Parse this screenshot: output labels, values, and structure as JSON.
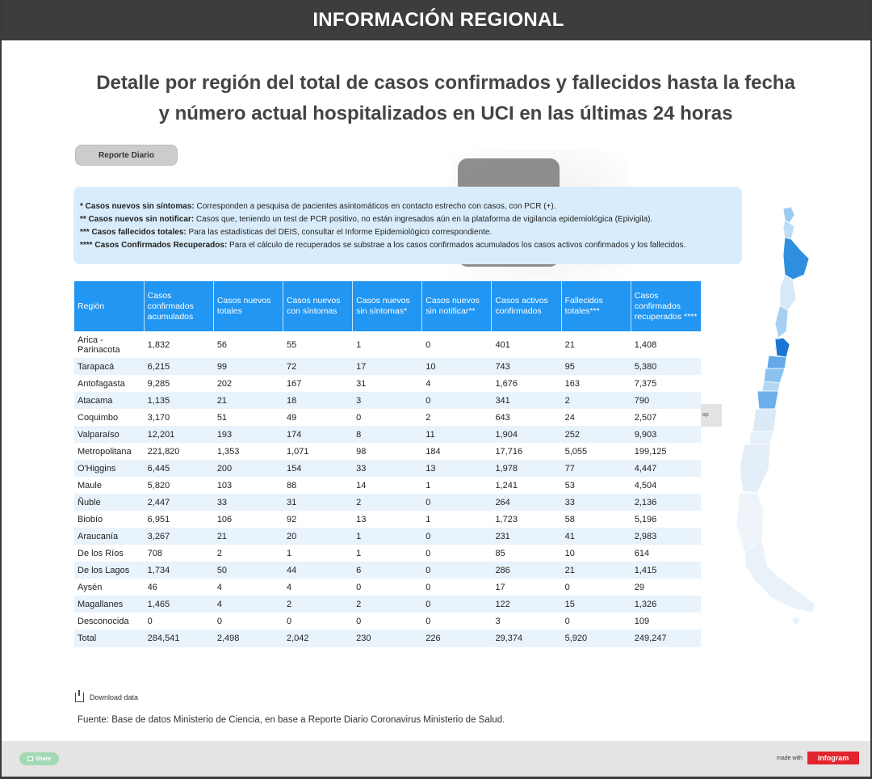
{
  "header": {
    "title": "INFORMACIÓN REGIONAL"
  },
  "page_title": {
    "line1": "Detalle por región del total de casos confirmados y fallecidos hasta la fecha",
    "line2": "y número actual hospitalizados en UCI en las últimas 24 horas"
  },
  "report_button": {
    "label": "Reporte Diario"
  },
  "notes": [
    {
      "term": "* Casos nuevos sin síntomas:",
      "text": " Corresponden a pesquisa de pacientes asintomáticos en contacto estrecho con casos, con PCR (+)."
    },
    {
      "term": "** Casos nuevos sin notificar:",
      "text": " Casos que, teniendo un test de PCR positivo, no están ingresados aún en la plataforma de vigilancia epidemiológica (Epivigila)."
    },
    {
      "term": "*** Casos fallecidos totales:",
      "text": " Para las estadísticas del DEIS, consultar el Informe Epidemiológico correspondiente."
    },
    {
      "term": "**** Casos Confirmados Recuperados:",
      "text": " Para el cálculo de recuperados se substrae a los casos confirmados acumulados los casos activos confirmados y los fallecidos."
    }
  ],
  "table": {
    "headers": [
      "Región",
      "Casos confirmados acumulados",
      "Casos nuevos totales",
      "Casos nuevos con síntomas",
      "Casos nuevos sin síntomas*",
      "Casos nuevos sin notificar**",
      "Casos activos confirmados",
      "Fallecidos totales***",
      "Casos confirmados recuperados ****"
    ],
    "rows": [
      [
        "Arica - Parinacota",
        "1,832",
        "56",
        "55",
        "1",
        "0",
        "401",
        "21",
        "1,408"
      ],
      [
        "Tarapacá",
        "6,215",
        "99",
        "72",
        "17",
        "10",
        "743",
        "95",
        "5,380"
      ],
      [
        "Antofagasta",
        "9,285",
        "202",
        "167",
        "31",
        "4",
        "1,676",
        "163",
        "7,375"
      ],
      [
        "Atacama",
        "1,135",
        "21",
        "18",
        "3",
        "0",
        "341",
        "2",
        "790"
      ],
      [
        "Coquimbo",
        "3,170",
        "51",
        "49",
        "0",
        "2",
        "643",
        "24",
        "2,507"
      ],
      [
        "Valparaíso",
        "12,201",
        "193",
        "174",
        "8",
        "11",
        "1,904",
        "252",
        "9,903"
      ],
      [
        "Metropolitana",
        "221,820",
        "1,353",
        "1,071",
        "98",
        "184",
        "17,716",
        "5,055",
        "199,125"
      ],
      [
        "O'Higgins",
        "6,445",
        "200",
        "154",
        "33",
        "13",
        "1,978",
        "77",
        "4,447"
      ],
      [
        "Maule",
        "5,820",
        "103",
        "88",
        "14",
        "1",
        "1,241",
        "53",
        "4,504"
      ],
      [
        "Ñuble",
        "2,447",
        "33",
        "31",
        "2",
        "0",
        "264",
        "33",
        "2,136"
      ],
      [
        "Biobío",
        "6,951",
        "106",
        "92",
        "13",
        "1",
        "1,723",
        "58",
        "5,196"
      ],
      [
        "Araucanía",
        "3,267",
        "21",
        "20",
        "1",
        "0",
        "231",
        "41",
        "2,983"
      ],
      [
        "De los Ríos",
        "708",
        "2",
        "1",
        "1",
        "0",
        "85",
        "10",
        "614"
      ],
      [
        "De los Lagos",
        "1,734",
        "50",
        "44",
        "6",
        "0",
        "286",
        "21",
        "1,415"
      ],
      [
        "Aysén",
        "46",
        "4",
        "4",
        "0",
        "0",
        "17",
        "0",
        "29"
      ],
      [
        "Magallanes",
        "1,465",
        "4",
        "2",
        "2",
        "0",
        "122",
        "15",
        "1,326"
      ],
      [
        "Desconocida",
        "0",
        "0",
        "0",
        "0",
        "0",
        "3",
        "0",
        "109"
      ],
      [
        "Total",
        "284,541",
        "2,498",
        "2,042",
        "230",
        "226",
        "29,374",
        "5,920",
        "249,247"
      ]
    ]
  },
  "side_tab": {
    "label": "ap"
  },
  "download": {
    "label": "Download data"
  },
  "source": {
    "text": "Fuente: Base de datos Ministerio de Ciencia, en base a Reporte Diario Coronavirus Ministerio de Salud."
  },
  "footer": {
    "share_label": "Share",
    "made_with": "made with",
    "brand": "infogram"
  },
  "colors": {
    "header_bg": "#3d3d3d",
    "table_header": "#2196f3",
    "row_alt": "#e8f3fc",
    "notes_bg": "#d8ecfb",
    "brand_red": "#e2242c",
    "share_green": "#a4d9b5"
  }
}
